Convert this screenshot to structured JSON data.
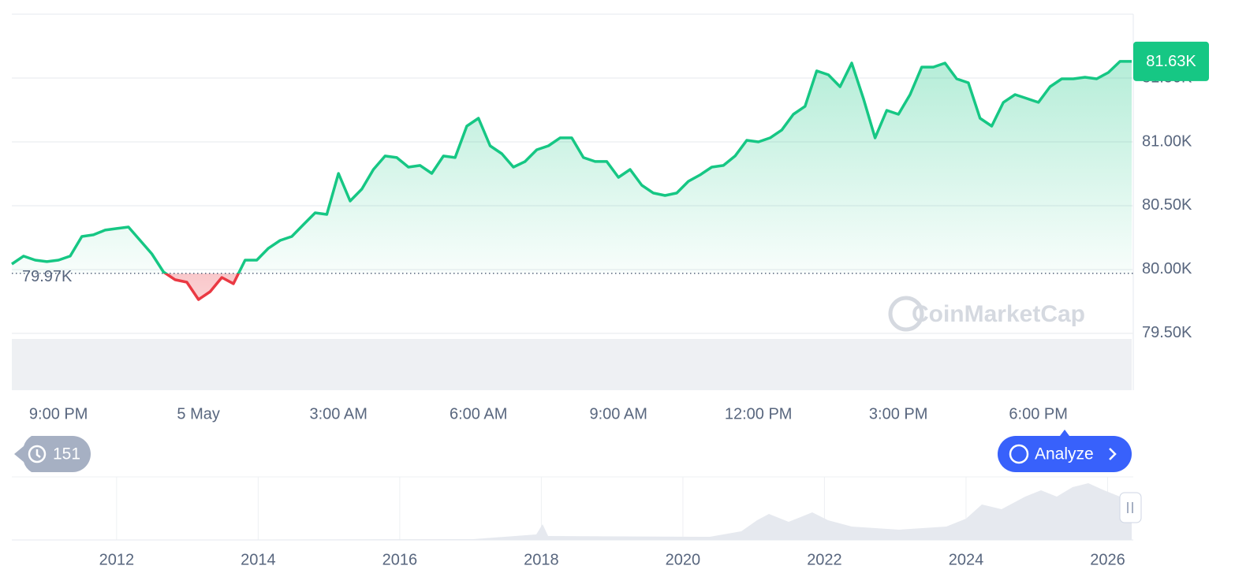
{
  "chart_data": {
    "type": "line",
    "x": [
      -4,
      -3.75,
      -3.5,
      -3.25,
      -3,
      -2.75,
      -2.5,
      -2.25,
      -2,
      -1.75,
      -1.5,
      -1.25,
      -1,
      -0.75,
      -0.5,
      -0.25,
      0,
      0.25,
      0.5,
      0.75,
      1,
      1.25,
      1.5,
      1.75,
      2,
      2.25,
      2.5,
      2.75,
      3,
      3.25,
      3.5,
      3.75,
      4,
      4.25,
      4.5,
      4.75,
      5,
      5.25,
      5.5,
      5.75,
      6,
      6.25,
      6.5,
      6.75,
      7,
      7.25,
      7.5,
      7.75,
      8,
      8.25,
      8.5,
      8.75,
      9,
      9.25,
      9.5,
      9.75,
      10,
      10.25,
      10.5,
      10.75,
      11,
      11.25,
      11.5,
      11.75,
      12,
      12.25,
      12.5,
      12.75,
      13,
      13.25,
      13.5,
      13.75,
      14,
      14.25,
      14.5,
      14.75,
      15,
      15.25,
      15.5,
      15.75,
      16,
      16.25,
      16.5,
      16.75,
      17,
      17.25,
      17.5,
      17.75,
      18,
      18.25,
      18.5,
      18.75,
      19,
      19.25,
      19.5,
      19.75,
      20
    ],
    "values": [
      80043,
      80105,
      80074,
      80062,
      80074,
      80105,
      80259,
      80272,
      80309,
      80321,
      80333,
      80228,
      80123,
      79981,
      79920,
      79901,
      79765,
      79827,
      79938,
      79889,
      80074,
      80074,
      80167,
      80228,
      80259,
      80352,
      80444,
      80432,
      80753,
      80537,
      80630,
      80784,
      80889,
      80877,
      80802,
      80815,
      80753,
      80889,
      80877,
      81123,
      81185,
      80969,
      80907,
      80802,
      80846,
      80938,
      80969,
      81031,
      81031,
      80877,
      80846,
      80846,
      80722,
      80784,
      80660,
      80599,
      80580,
      80599,
      80691,
      80741,
      80802,
      80815,
      80889,
      81012,
      81000,
      81031,
      81093,
      81216,
      81278,
      81556,
      81525,
      81432,
      81617,
      81340,
      81031,
      81247,
      81216,
      81370,
      81586,
      81586,
      81617,
      81494,
      81463,
      81185,
      81123,
      81309,
      81370,
      81340,
      81309,
      81432,
      81494,
      81494,
      81506,
      81494,
      81543,
      81630,
      81630
    ],
    "up_color": "#16c784",
    "down_color": "#ea3943",
    "baseline": {
      "value": 79970,
      "label": "79.97K"
    },
    "current_price": {
      "value": 81630,
      "label": "81.63K"
    },
    "xlim": [
      -4,
      20
    ],
    "xticks": [
      {
        "value": -3,
        "label": "9:00 PM"
      },
      {
        "value": 0,
        "label": "5 May"
      },
      {
        "value": 3,
        "label": "3:00 AM"
      },
      {
        "value": 6,
        "label": "6:00 AM"
      },
      {
        "value": 9,
        "label": "9:00 AM"
      },
      {
        "value": 12,
        "label": "12:00 PM"
      },
      {
        "value": 15,
        "label": "3:00 PM"
      },
      {
        "value": 18,
        "label": "6:00 PM"
      }
    ],
    "ylim": [
      79055,
      82000
    ],
    "yticks": [
      {
        "value": 79500,
        "label": "79.50K"
      },
      {
        "value": 80000,
        "label": "80.00K"
      },
      {
        "value": 80500,
        "label": "80.50K"
      },
      {
        "value": 81000,
        "label": "81.00K"
      },
      {
        "value": 81500,
        "label": "81.50K"
      }
    ],
    "grid": true
  },
  "navigator": {
    "xlim": [
      2010.52,
      2026.34
    ],
    "xticks": [
      2012,
      2014,
      2016,
      2018,
      2020,
      2022,
      2024,
      2026
    ]
  },
  "ui": {
    "history_count": 151,
    "analyze": "Analyze",
    "watermark": "CoinMarketCap"
  }
}
